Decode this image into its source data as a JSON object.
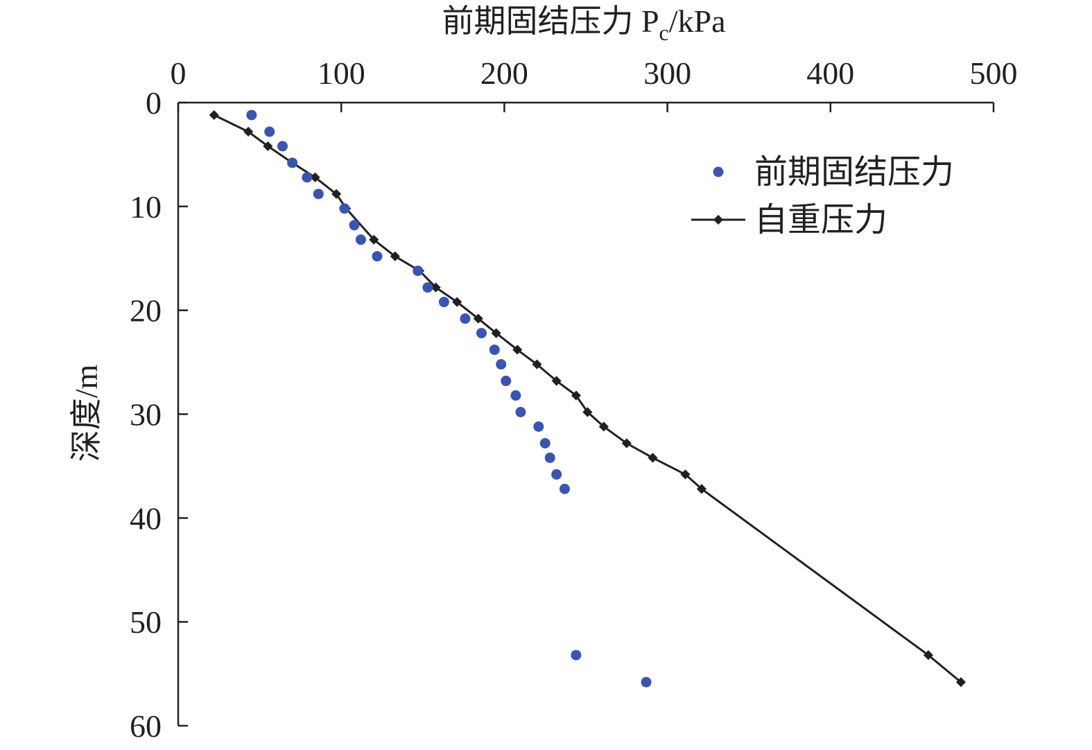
{
  "chart_data": {
    "type": "scatter",
    "xlabel": "前期固结压力 P",
    "xlabel_sub": "c",
    "xlabel_unit": "/kPa",
    "ylabel": "深度/m",
    "xlim": [
      0,
      500
    ],
    "ylim": [
      0,
      60
    ],
    "y_inverted": true,
    "x_axis_position": "top",
    "grid": false,
    "legend_position": "top-right",
    "xticks": [
      "0",
      "100",
      "200",
      "300",
      "400",
      "500"
    ],
    "yticks": [
      "0",
      "10",
      "20",
      "30",
      "40",
      "50",
      "60"
    ],
    "series": [
      {
        "name": "前期固结压力",
        "style": "markers",
        "color": "#3a55b0",
        "x": [
          45,
          56,
          64,
          70,
          79,
          86,
          102,
          108,
          112,
          122,
          147,
          153,
          163,
          176,
          186,
          194,
          198,
          201,
          207,
          210,
          221,
          225,
          228,
          232,
          237,
          244,
          287
        ],
        "y": [
          1.2,
          2.8,
          4.2,
          5.8,
          7.2,
          8.8,
          10.2,
          11.8,
          13.2,
          14.8,
          16.2,
          17.8,
          19.2,
          20.8,
          22.2,
          23.8,
          25.2,
          26.8,
          28.2,
          29.8,
          31.2,
          32.8,
          34.2,
          35.8,
          37.2,
          53.2,
          55.8
        ]
      },
      {
        "name": "自重压力",
        "style": "line-markers",
        "color": "#231f20",
        "x": [
          22,
          43,
          55,
          70,
          84,
          97,
          103,
          120,
          133,
          148,
          158,
          171,
          184,
          195,
          208,
          220,
          232,
          244,
          251,
          261,
          275,
          291,
          311,
          321,
          460,
          480
        ],
        "y": [
          1.2,
          2.8,
          4.2,
          5.8,
          7.2,
          8.8,
          10.2,
          13.2,
          14.8,
          16.2,
          17.8,
          19.2,
          20.8,
          22.2,
          23.8,
          25.2,
          26.8,
          28.2,
          29.8,
          31.2,
          32.8,
          34.2,
          35.8,
          37.2,
          53.2,
          55.8
        ]
      }
    ]
  }
}
